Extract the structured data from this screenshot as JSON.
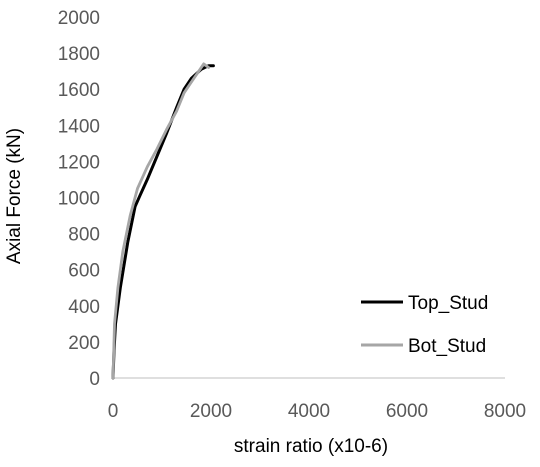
{
  "chart_data": {
    "type": "line",
    "title": "",
    "xlabel": "strain ratio (x10-6)",
    "ylabel": "Axial Force (kN)",
    "xlim": [
      0,
      8000
    ],
    "ylim": [
      0,
      2000
    ],
    "x_ticks": [
      0,
      2000,
      4000,
      6000,
      8000
    ],
    "y_ticks": [
      0,
      200,
      400,
      600,
      800,
      1000,
      1200,
      1400,
      1600,
      1800,
      2000
    ],
    "grid": false,
    "legend_position": "bottom-right",
    "series": [
      {
        "name": "Top_Stud",
        "color": "#000000",
        "points": [
          [
            0,
            0
          ],
          [
            20,
            150
          ],
          [
            50,
            300
          ],
          [
            150,
            500
          ],
          [
            300,
            750
          ],
          [
            450,
            950
          ],
          [
            550,
            1010
          ],
          [
            700,
            1100
          ],
          [
            900,
            1230
          ],
          [
            1100,
            1360
          ],
          [
            1300,
            1500
          ],
          [
            1450,
            1600
          ],
          [
            1600,
            1660
          ],
          [
            1800,
            1710
          ],
          [
            1950,
            1730
          ],
          [
            2050,
            1730
          ]
        ]
      },
      {
        "name": "Bot_Stud",
        "color": "#a6a6a6",
        "points": [
          [
            0,
            0
          ],
          [
            30,
            300
          ],
          [
            100,
            500
          ],
          [
            200,
            700
          ],
          [
            350,
            900
          ],
          [
            500,
            1050
          ],
          [
            700,
            1170
          ],
          [
            900,
            1270
          ],
          [
            1100,
            1380
          ],
          [
            1300,
            1480
          ],
          [
            1450,
            1580
          ],
          [
            1600,
            1640
          ],
          [
            1750,
            1700
          ],
          [
            1850,
            1740
          ],
          [
            1950,
            1720
          ]
        ]
      }
    ]
  }
}
